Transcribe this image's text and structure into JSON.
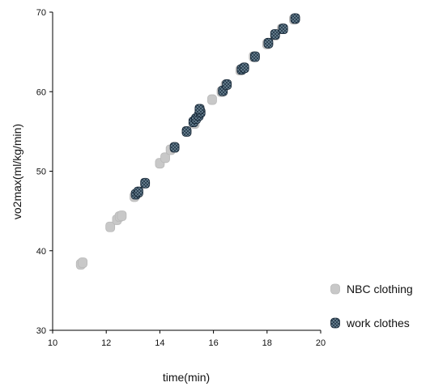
{
  "chart_data": {
    "type": "scatter",
    "title": "",
    "xlabel": "time(min)",
    "ylabel": "vo2max(ml/kg/min)",
    "xlim": [
      10,
      20
    ],
    "ylim": [
      30,
      70
    ],
    "xticks": [
      10,
      12,
      14,
      16,
      18,
      20
    ],
    "yticks": [
      30,
      40,
      50,
      60,
      70
    ],
    "grid": false,
    "legend_position": "right",
    "series": [
      {
        "name": "NBC clothing",
        "color": "#c8c8c8",
        "marker": "blob",
        "points": [
          [
            11.05,
            38.3
          ],
          [
            11.12,
            38.5
          ],
          [
            12.15,
            43.0
          ],
          [
            12.4,
            43.9
          ],
          [
            12.5,
            44.3
          ],
          [
            12.58,
            44.4
          ],
          [
            13.05,
            46.8
          ],
          [
            13.2,
            47.3
          ],
          [
            14.0,
            51.0
          ],
          [
            14.2,
            51.7
          ],
          [
            14.4,
            52.7
          ],
          [
            14.55,
            53.0
          ],
          [
            15.0,
            55.0
          ],
          [
            15.3,
            56.0
          ],
          [
            15.5,
            57.8
          ],
          [
            15.95,
            59.0
          ],
          [
            16.3,
            60.0
          ],
          [
            16.45,
            60.8
          ],
          [
            17.0,
            62.7
          ],
          [
            17.5,
            64.4
          ],
          [
            18.0,
            66.0
          ],
          [
            18.3,
            67.1
          ],
          [
            18.55,
            67.9
          ],
          [
            19.0,
            69.1
          ]
        ]
      },
      {
        "name": "work clothes",
        "color": "#1e3345",
        "marker": "mesh",
        "points": [
          [
            13.1,
            47.1
          ],
          [
            13.2,
            47.4
          ],
          [
            13.45,
            48.5
          ],
          [
            14.55,
            53.0
          ],
          [
            15.0,
            55.0
          ],
          [
            15.25,
            56.2
          ],
          [
            15.35,
            56.6
          ],
          [
            15.45,
            57.0
          ],
          [
            15.52,
            57.4
          ],
          [
            15.48,
            57.8
          ],
          [
            16.35,
            60.1
          ],
          [
            16.5,
            60.9
          ],
          [
            17.05,
            62.8
          ],
          [
            17.15,
            63.0
          ],
          [
            17.55,
            64.4
          ],
          [
            18.05,
            66.1
          ],
          [
            18.3,
            67.2
          ],
          [
            18.6,
            67.9
          ],
          [
            19.05,
            69.2
          ]
        ]
      }
    ]
  }
}
